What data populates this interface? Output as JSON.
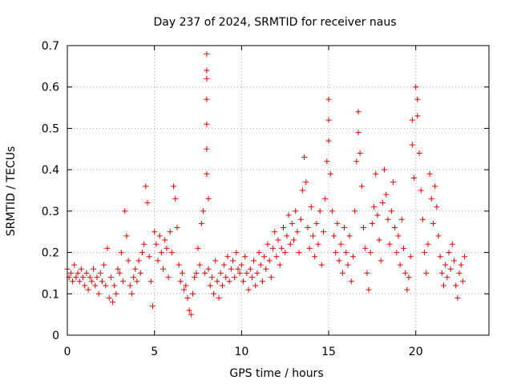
{
  "chart_data": {
    "type": "scatter",
    "title": "Day 237 of 2024, SRMTID for receiver naus",
    "xlabel": "GPS time / hours",
    "ylabel": "SRMTID / TECUs",
    "xlim": [
      0,
      24.2
    ],
    "ylim": [
      0,
      0.7
    ],
    "xticks": [
      0,
      5,
      10,
      15,
      20
    ],
    "xtick_labels": [
      "0",
      "5",
      "10",
      "15",
      "20"
    ],
    "yticks": [
      0,
      0.1,
      0.2,
      0.3,
      0.4,
      0.5,
      0.6,
      0.7
    ],
    "ytick_labels": [
      "0",
      "0.1",
      "0.2",
      "0.3",
      "0.4",
      "0.5",
      "0.6",
      "0.7"
    ],
    "grid": true,
    "marker": "plus",
    "color": "#e00000",
    "series": [
      {
        "name": "naus",
        "points": [
          [
            0.0,
            0.16
          ],
          [
            0.1,
            0.14
          ],
          [
            0.2,
            0.15
          ],
          [
            0.3,
            0.13
          ],
          [
            0.4,
            0.17
          ],
          [
            0.5,
            0.14
          ],
          [
            0.6,
            0.15
          ],
          [
            0.7,
            0.13
          ],
          [
            0.8,
            0.16
          ],
          [
            0.9,
            0.14
          ],
          [
            1.0,
            0.12
          ],
          [
            1.1,
            0.15
          ],
          [
            1.2,
            0.11
          ],
          [
            1.3,
            0.14
          ],
          [
            1.4,
            0.13
          ],
          [
            1.5,
            0.16
          ],
          [
            1.6,
            0.12
          ],
          [
            1.7,
            0.14
          ],
          [
            1.8,
            0.1
          ],
          [
            1.9,
            0.15
          ],
          [
            2.0,
            0.13
          ],
          [
            2.1,
            0.17
          ],
          [
            2.2,
            0.12
          ],
          [
            2.3,
            0.21
          ],
          [
            2.4,
            0.09
          ],
          [
            2.5,
            0.14
          ],
          [
            2.6,
            0.08
          ],
          [
            2.7,
            0.12
          ],
          [
            2.8,
            0.1
          ],
          [
            2.9,
            0.16
          ],
          [
            3.0,
            0.15
          ],
          [
            3.1,
            0.2
          ],
          [
            3.2,
            0.13
          ],
          [
            3.3,
            0.3
          ],
          [
            3.4,
            0.24
          ],
          [
            3.5,
            0.18
          ],
          [
            3.6,
            0.12
          ],
          [
            3.7,
            0.1
          ],
          [
            3.8,
            0.14
          ],
          [
            3.9,
            0.16
          ],
          [
            4.0,
            0.13
          ],
          [
            4.1,
            0.18
          ],
          [
            4.2,
            0.15
          ],
          [
            4.3,
            0.2
          ],
          [
            4.4,
            0.22
          ],
          [
            4.5,
            0.36
          ],
          [
            4.6,
            0.32
          ],
          [
            4.7,
            0.19
          ],
          [
            4.8,
            0.13
          ],
          [
            4.9,
            0.07
          ],
          [
            5.0,
            0.25
          ],
          [
            5.1,
            0.22
          ],
          [
            5.2,
            0.18
          ],
          [
            5.3,
            0.24
          ],
          [
            5.4,
            0.2
          ],
          [
            5.5,
            0.16
          ],
          [
            5.6,
            0.23
          ],
          [
            5.7,
            0.21
          ],
          [
            5.8,
            0.14
          ],
          [
            5.9,
            0.25
          ],
          [
            6.0,
            0.2
          ],
          [
            6.1,
            0.36
          ],
          [
            6.2,
            0.33
          ],
          [
            6.3,
            0.26
          ],
          [
            6.4,
            0.17
          ],
          [
            6.5,
            0.13
          ],
          [
            6.6,
            0.15
          ],
          [
            6.7,
            0.11
          ],
          [
            6.8,
            0.12
          ],
          [
            6.9,
            0.09
          ],
          [
            7.0,
            0.06
          ],
          [
            7.1,
            0.05
          ],
          [
            7.2,
            0.1
          ],
          [
            7.3,
            0.14
          ],
          [
            7.4,
            0.15
          ],
          [
            7.5,
            0.21
          ],
          [
            7.6,
            0.17
          ],
          [
            7.7,
            0.27
          ],
          [
            7.8,
            0.3
          ],
          [
            7.9,
            0.15
          ],
          [
            8.0,
            0.68
          ],
          [
            8.0,
            0.64
          ],
          [
            8.0,
            0.62
          ],
          [
            8.0,
            0.57
          ],
          [
            8.0,
            0.51
          ],
          [
            8.0,
            0.45
          ],
          [
            8.0,
            0.39
          ],
          [
            8.1,
            0.33
          ],
          [
            8.1,
            0.16
          ],
          [
            8.2,
            0.12
          ],
          [
            8.3,
            0.14
          ],
          [
            8.4,
            0.1
          ],
          [
            8.5,
            0.18
          ],
          [
            8.6,
            0.13
          ],
          [
            8.7,
            0.09
          ],
          [
            8.8,
            0.15
          ],
          [
            8.9,
            0.12
          ],
          [
            9.0,
            0.17
          ],
          [
            9.1,
            0.14
          ],
          [
            9.2,
            0.19
          ],
          [
            9.3,
            0.13
          ],
          [
            9.4,
            0.16
          ],
          [
            9.5,
            0.18
          ],
          [
            9.6,
            0.14
          ],
          [
            9.7,
            0.2
          ],
          [
            9.8,
            0.16
          ],
          [
            9.9,
            0.15
          ],
          [
            10.0,
            0.17
          ],
          [
            10.1,
            0.13
          ],
          [
            10.2,
            0.19
          ],
          [
            10.3,
            0.15
          ],
          [
            10.4,
            0.11
          ],
          [
            10.5,
            0.16
          ],
          [
            10.6,
            0.14
          ],
          [
            10.7,
            0.18
          ],
          [
            10.8,
            0.12
          ],
          [
            10.9,
            0.15
          ],
          [
            11.0,
            0.2
          ],
          [
            11.1,
            0.17
          ],
          [
            11.2,
            0.13
          ],
          [
            11.3,
            0.19
          ],
          [
            11.4,
            0.16
          ],
          [
            11.5,
            0.22
          ],
          [
            11.6,
            0.18
          ],
          [
            11.7,
            0.14
          ],
          [
            11.8,
            0.21
          ],
          [
            11.9,
            0.25
          ],
          [
            12.0,
            0.19
          ],
          [
            12.1,
            0.23
          ],
          [
            12.2,
            0.17
          ],
          [
            12.3,
            0.21
          ],
          [
            12.4,
            0.26
          ],
          [
            12.5,
            0.2
          ],
          [
            12.6,
            0.24
          ],
          [
            12.7,
            0.29
          ],
          [
            12.8,
            0.22
          ],
          [
            12.9,
            0.27
          ],
          [
            13.0,
            0.23
          ],
          [
            13.1,
            0.3
          ],
          [
            13.2,
            0.25
          ],
          [
            13.3,
            0.2
          ],
          [
            13.4,
            0.28
          ],
          [
            13.5,
            0.35
          ],
          [
            13.6,
            0.43
          ],
          [
            13.7,
            0.37
          ],
          [
            13.8,
            0.26
          ],
          [
            13.9,
            0.21
          ],
          [
            14.0,
            0.31
          ],
          [
            14.1,
            0.24
          ],
          [
            14.2,
            0.19
          ],
          [
            14.3,
            0.27
          ],
          [
            14.4,
            0.22
          ],
          [
            14.5,
            0.3
          ],
          [
            14.6,
            0.17
          ],
          [
            14.7,
            0.25
          ],
          [
            14.8,
            0.33
          ],
          [
            14.9,
            0.42
          ],
          [
            15.0,
            0.57
          ],
          [
            15.0,
            0.52
          ],
          [
            15.0,
            0.47
          ],
          [
            15.1,
            0.39
          ],
          [
            15.2,
            0.3
          ],
          [
            15.3,
            0.24
          ],
          [
            15.4,
            0.2
          ],
          [
            15.5,
            0.27
          ],
          [
            15.6,
            0.18
          ],
          [
            15.7,
            0.22
          ],
          [
            15.8,
            0.15
          ],
          [
            15.9,
            0.26
          ],
          [
            16.0,
            0.2
          ],
          [
            16.1,
            0.17
          ],
          [
            16.2,
            0.24
          ],
          [
            16.3,
            0.13
          ],
          [
            16.4,
            0.19
          ],
          [
            16.5,
            0.3
          ],
          [
            16.6,
            0.42
          ],
          [
            16.7,
            0.54
          ],
          [
            16.7,
            0.49
          ],
          [
            16.8,
            0.44
          ],
          [
            16.9,
            0.36
          ],
          [
            17.0,
            0.26
          ],
          [
            17.1,
            0.21
          ],
          [
            17.2,
            0.15
          ],
          [
            17.3,
            0.11
          ],
          [
            17.4,
            0.2
          ],
          [
            17.5,
            0.27
          ],
          [
            17.6,
            0.31
          ],
          [
            17.7,
            0.39
          ],
          [
            17.8,
            0.29
          ],
          [
            17.9,
            0.23
          ],
          [
            18.0,
            0.18
          ],
          [
            18.1,
            0.32
          ],
          [
            18.2,
            0.4
          ],
          [
            18.3,
            0.34
          ],
          [
            18.4,
            0.28
          ],
          [
            18.5,
            0.22
          ],
          [
            18.6,
            0.3
          ],
          [
            18.7,
            0.37
          ],
          [
            18.8,
            0.26
          ],
          [
            18.9,
            0.2
          ],
          [
            19.0,
            0.24
          ],
          [
            19.1,
            0.17
          ],
          [
            19.2,
            0.28
          ],
          [
            19.3,
            0.21
          ],
          [
            19.4,
            0.15
          ],
          [
            19.5,
            0.11
          ],
          [
            19.6,
            0.14
          ],
          [
            19.7,
            0.19
          ],
          [
            19.8,
            0.52
          ],
          [
            19.8,
            0.46
          ],
          [
            19.9,
            0.38
          ],
          [
            20.0,
            0.6
          ],
          [
            20.1,
            0.57
          ],
          [
            20.1,
            0.53
          ],
          [
            20.2,
            0.44
          ],
          [
            20.3,
            0.35
          ],
          [
            20.4,
            0.28
          ],
          [
            20.5,
            0.2
          ],
          [
            20.6,
            0.15
          ],
          [
            20.7,
            0.22
          ],
          [
            20.8,
            0.39
          ],
          [
            20.9,
            0.33
          ],
          [
            21.0,
            0.27
          ],
          [
            21.1,
            0.36
          ],
          [
            21.2,
            0.31
          ],
          [
            21.3,
            0.24
          ],
          [
            21.4,
            0.19
          ],
          [
            21.5,
            0.15
          ],
          [
            21.6,
            0.12
          ],
          [
            21.7,
            0.17
          ],
          [
            21.8,
            0.14
          ],
          [
            21.9,
            0.2
          ],
          [
            22.0,
            0.16
          ],
          [
            22.1,
            0.22
          ],
          [
            22.2,
            0.18
          ],
          [
            22.3,
            0.12
          ],
          [
            22.4,
            0.09
          ],
          [
            22.5,
            0.15
          ],
          [
            22.6,
            0.17
          ],
          [
            22.7,
            0.13
          ],
          [
            22.8,
            0.19
          ]
        ]
      }
    ]
  }
}
